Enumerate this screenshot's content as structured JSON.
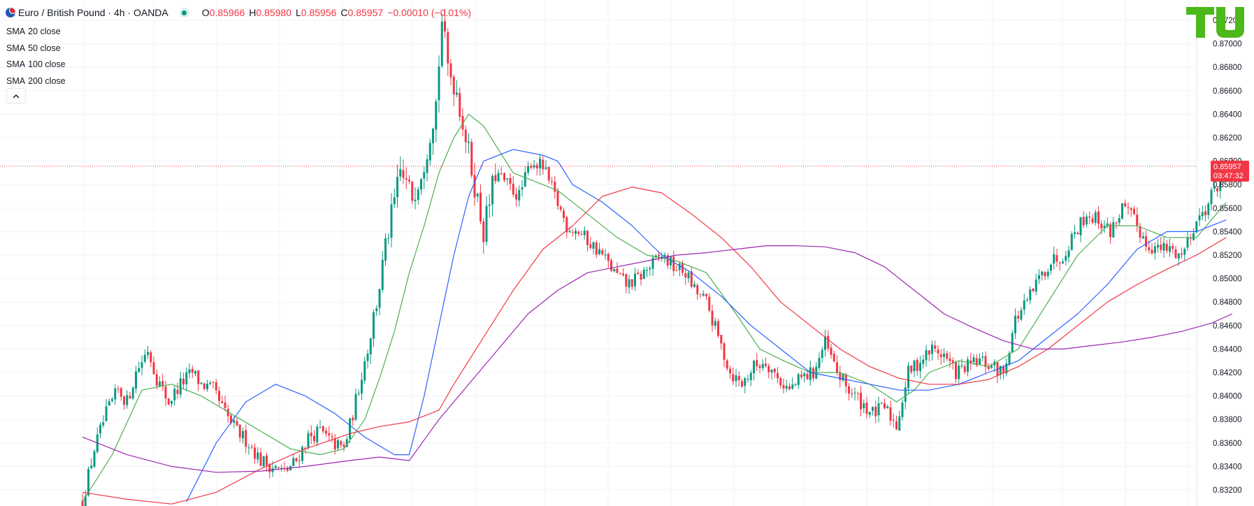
{
  "header": {
    "symbol": "Euro / British Pound · 4h · OANDA",
    "ohlc": {
      "o_label": "O",
      "o": "0.85966",
      "h_label": "H",
      "h": "0.85980",
      "l_label": "L",
      "l": "0.85956",
      "c_label": "C",
      "c": "0.85957",
      "change": "−0.00010 (−0.01%)"
    }
  },
  "indicators": [
    {
      "name": "SMA",
      "params": "20 close",
      "color": "#4caf50"
    },
    {
      "name": "SMA",
      "params": "50 close",
      "color": "#2962ff"
    },
    {
      "name": "SMA",
      "params": "100 close",
      "color": "#f23645"
    },
    {
      "name": "SMA",
      "params": "200 close",
      "color": "#9c27b0"
    }
  ],
  "collapse_icon": "chevron-up-icon",
  "logo_icon": "tu-logo-icon",
  "colors": {
    "up": "#089981",
    "down": "#f23645",
    "grid": "#f0f3fa",
    "price_tag": "#f23645"
  },
  "price_tag": {
    "price": "0.85957",
    "countdown": "03:47:32"
  },
  "chart_data": {
    "type": "candlestick",
    "title": "Euro / British Pound · 4h · OANDA",
    "ylim": [
      0.831,
      0.8733
    ],
    "y_ticks": [
      "0.87200",
      "0.87000",
      "0.86800",
      "0.86600",
      "0.86400",
      "0.86200",
      "0.86000",
      "0.85800",
      "0.85600",
      "0.85400",
      "0.85200",
      "0.85000",
      "0.84800",
      "0.84600",
      "0.84400",
      "0.84200",
      "0.84000",
      "0.83800",
      "0.83600",
      "0.83400",
      "0.83200"
    ],
    "last_price": 0.85957,
    "grid": true,
    "close_path": [
      [
        0,
        0.831
      ],
      [
        4,
        0.8355
      ],
      [
        8,
        0.8385
      ],
      [
        12,
        0.8405
      ],
      [
        15,
        0.8395
      ],
      [
        18,
        0.842
      ],
      [
        22,
        0.844
      ],
      [
        25,
        0.8415
      ],
      [
        29,
        0.8395
      ],
      [
        33,
        0.841
      ],
      [
        37,
        0.842
      ],
      [
        40,
        0.841
      ],
      [
        44,
        0.8405
      ],
      [
        48,
        0.8385
      ],
      [
        52,
        0.837
      ],
      [
        56,
        0.836
      ],
      [
        60,
        0.8345
      ],
      [
        64,
        0.834
      ],
      [
        68,
        0.8335
      ],
      [
        72,
        0.8345
      ],
      [
        76,
        0.8365
      ],
      [
        80,
        0.837
      ],
      [
        84,
        0.836
      ],
      [
        88,
        0.8355
      ],
      [
        91,
        0.8385
      ],
      [
        95,
        0.843
      ],
      [
        99,
        0.848
      ],
      [
        103,
        0.854
      ],
      [
        107,
        0.859
      ],
      [
        111,
        0.857
      ],
      [
        115,
        0.86
      ],
      [
        119,
        0.865
      ],
      [
        121,
        0.872
      ],
      [
        123,
        0.868
      ],
      [
        126,
        0.866
      ],
      [
        129,
        0.862
      ],
      [
        132,
        0.858
      ],
      [
        135,
        0.854
      ],
      [
        139,
        0.859
      ],
      [
        143,
        0.858
      ],
      [
        147,
        0.857
      ],
      [
        151,
        0.86
      ],
      [
        155,
        0.8595
      ],
      [
        159,
        0.857
      ],
      [
        163,
        0.8545
      ],
      [
        167,
        0.854
      ],
      [
        171,
        0.853
      ],
      [
        175,
        0.852
      ],
      [
        179,
        0.8505
      ],
      [
        183,
        0.8495
      ],
      [
        187,
        0.85
      ],
      [
        191,
        0.851
      ],
      [
        195,
        0.852
      ],
      [
        199,
        0.851
      ],
      [
        203,
        0.8505
      ],
      [
        206,
        0.849
      ],
      [
        210,
        0.848
      ],
      [
        214,
        0.845
      ],
      [
        218,
        0.842
      ],
      [
        222,
        0.841
      ],
      [
        226,
        0.8425
      ],
      [
        230,
        0.843
      ],
      [
        234,
        0.8415
      ],
      [
        238,
        0.8405
      ],
      [
        242,
        0.8415
      ],
      [
        246,
        0.842
      ],
      [
        250,
        0.8445
      ],
      [
        254,
        0.842
      ],
      [
        258,
        0.8405
      ],
      [
        262,
        0.8395
      ],
      [
        266,
        0.8385
      ],
      [
        270,
        0.839
      ],
      [
        274,
        0.8375
      ],
      [
        278,
        0.842
      ],
      [
        282,
        0.843
      ],
      [
        286,
        0.844
      ],
      [
        290,
        0.8435
      ],
      [
        294,
        0.842
      ],
      [
        298,
        0.8425
      ],
      [
        302,
        0.843
      ],
      [
        306,
        0.8425
      ],
      [
        310,
        0.842
      ],
      [
        314,
        0.8465
      ],
      [
        318,
        0.848
      ],
      [
        322,
        0.85
      ],
      [
        326,
        0.8515
      ],
      [
        330,
        0.852
      ],
      [
        334,
        0.854
      ],
      [
        338,
        0.8555
      ],
      [
        342,
        0.855
      ],
      [
        346,
        0.854
      ],
      [
        350,
        0.856
      ],
      [
        354,
        0.855
      ],
      [
        358,
        0.853
      ],
      [
        362,
        0.8525
      ],
      [
        366,
        0.8525
      ],
      [
        370,
        0.852
      ],
      [
        374,
        0.8545
      ],
      [
        378,
        0.856
      ],
      [
        382,
        0.858
      ],
      [
        384,
        0.859
      ],
      [
        387,
        0.8596
      ]
    ],
    "series": [
      {
        "name": "SMA 20 close",
        "color": "#4caf50",
        "points": [
          [
            0,
            0.831
          ],
          [
            10,
            0.835
          ],
          [
            20,
            0.8405
          ],
          [
            30,
            0.841
          ],
          [
            40,
            0.84
          ],
          [
            50,
            0.8385
          ],
          [
            60,
            0.837
          ],
          [
            70,
            0.8355
          ],
          [
            80,
            0.835
          ],
          [
            88,
            0.8355
          ],
          [
            95,
            0.838
          ],
          [
            100,
            0.8415
          ],
          [
            105,
            0.8455
          ],
          [
            110,
            0.8505
          ],
          [
            115,
            0.8545
          ],
          [
            120,
            0.859
          ],
          [
            125,
            0.862
          ],
          [
            130,
            0.864
          ],
          [
            135,
            0.863
          ],
          [
            140,
            0.861
          ],
          [
            145,
            0.859
          ],
          [
            150,
            0.8585
          ],
          [
            160,
            0.8575
          ],
          [
            170,
            0.8555
          ],
          [
            180,
            0.8535
          ],
          [
            190,
            0.852
          ],
          [
            200,
            0.8515
          ],
          [
            210,
            0.8505
          ],
          [
            220,
            0.847
          ],
          [
            228,
            0.844
          ],
          [
            236,
            0.843
          ],
          [
            245,
            0.842
          ],
          [
            255,
            0.842
          ],
          [
            265,
            0.841
          ],
          [
            274,
            0.8395
          ],
          [
            280,
            0.8405
          ],
          [
            285,
            0.842
          ],
          [
            295,
            0.843
          ],
          [
            305,
            0.8425
          ],
          [
            315,
            0.844
          ],
          [
            325,
            0.848
          ],
          [
            335,
            0.852
          ],
          [
            345,
            0.8545
          ],
          [
            355,
            0.8545
          ],
          [
            365,
            0.8535
          ],
          [
            375,
            0.8535
          ],
          [
            385,
            0.8565
          ]
        ]
      },
      {
        "name": "SMA 50 close",
        "color": "#2962ff",
        "points": [
          [
            35,
            0.831
          ],
          [
            45,
            0.836
          ],
          [
            55,
            0.8395
          ],
          [
            65,
            0.841
          ],
          [
            75,
            0.84
          ],
          [
            85,
            0.8385
          ],
          [
            95,
            0.8365
          ],
          [
            105,
            0.835
          ],
          [
            110,
            0.835
          ],
          [
            115,
            0.84
          ],
          [
            120,
            0.846
          ],
          [
            125,
            0.852
          ],
          [
            130,
            0.857
          ],
          [
            135,
            0.86
          ],
          [
            145,
            0.861
          ],
          [
            155,
            0.8605
          ],
          [
            160,
            0.86
          ],
          [
            165,
            0.858
          ],
          [
            175,
            0.8565
          ],
          [
            185,
            0.8545
          ],
          [
            195,
            0.852
          ],
          [
            205,
            0.8505
          ],
          [
            215,
            0.8485
          ],
          [
            225,
            0.846
          ],
          [
            235,
            0.844
          ],
          [
            245,
            0.842
          ],
          [
            255,
            0.8415
          ],
          [
            265,
            0.841
          ],
          [
            275,
            0.8405
          ],
          [
            285,
            0.8405
          ],
          [
            295,
            0.841
          ],
          [
            305,
            0.842
          ],
          [
            315,
            0.843
          ],
          [
            325,
            0.845
          ],
          [
            335,
            0.847
          ],
          [
            345,
            0.8495
          ],
          [
            355,
            0.8525
          ],
          [
            365,
            0.854
          ],
          [
            375,
            0.854
          ],
          [
            385,
            0.855
          ]
        ]
      },
      {
        "name": "SMA 100 close",
        "color": "#f23645",
        "points": [
          [
            0,
            0.8318
          ],
          [
            15,
            0.8312
          ],
          [
            30,
            0.8308
          ],
          [
            45,
            0.8318
          ],
          [
            60,
            0.8338
          ],
          [
            75,
            0.8355
          ],
          [
            90,
            0.8368
          ],
          [
            100,
            0.8374
          ],
          [
            110,
            0.8378
          ],
          [
            120,
            0.8388
          ],
          [
            125,
            0.841
          ],
          [
            135,
            0.845
          ],
          [
            145,
            0.849
          ],
          [
            155,
            0.8525
          ],
          [
            165,
            0.8545
          ],
          [
            175,
            0.857
          ],
          [
            185,
            0.8578
          ],
          [
            195,
            0.8573
          ],
          [
            205,
            0.8555
          ],
          [
            215,
            0.8535
          ],
          [
            225,
            0.851
          ],
          [
            235,
            0.848
          ],
          [
            245,
            0.846
          ],
          [
            255,
            0.844
          ],
          [
            265,
            0.8425
          ],
          [
            275,
            0.8415
          ],
          [
            285,
            0.841
          ],
          [
            295,
            0.841
          ],
          [
            305,
            0.8414
          ],
          [
            315,
            0.8425
          ],
          [
            325,
            0.844
          ],
          [
            335,
            0.846
          ],
          [
            345,
            0.848
          ],
          [
            355,
            0.8495
          ],
          [
            365,
            0.8508
          ],
          [
            375,
            0.852
          ],
          [
            385,
            0.8535
          ]
        ]
      },
      {
        "name": "SMA 200 close",
        "color": "#9c27b0",
        "points": [
          [
            0,
            0.8365
          ],
          [
            15,
            0.835
          ],
          [
            30,
            0.834
          ],
          [
            45,
            0.8335
          ],
          [
            60,
            0.8336
          ],
          [
            75,
            0.834
          ],
          [
            90,
            0.8345
          ],
          [
            100,
            0.8348
          ],
          [
            110,
            0.8345
          ],
          [
            120,
            0.838
          ],
          [
            130,
            0.841
          ],
          [
            140,
            0.844
          ],
          [
            150,
            0.847
          ],
          [
            160,
            0.849
          ],
          [
            170,
            0.8505
          ],
          [
            180,
            0.851
          ],
          [
            190,
            0.8515
          ],
          [
            200,
            0.852
          ],
          [
            210,
            0.8522
          ],
          [
            220,
            0.8525
          ],
          [
            230,
            0.8528
          ],
          [
            240,
            0.8528
          ],
          [
            250,
            0.8527
          ],
          [
            260,
            0.8522
          ],
          [
            270,
            0.851
          ],
          [
            280,
            0.849
          ],
          [
            290,
            0.847
          ],
          [
            300,
            0.8458
          ],
          [
            310,
            0.8447
          ],
          [
            320,
            0.844
          ],
          [
            330,
            0.844
          ],
          [
            340,
            0.8443
          ],
          [
            350,
            0.8446
          ],
          [
            360,
            0.845
          ],
          [
            370,
            0.8455
          ],
          [
            380,
            0.8462
          ],
          [
            387,
            0.847
          ]
        ]
      }
    ]
  }
}
